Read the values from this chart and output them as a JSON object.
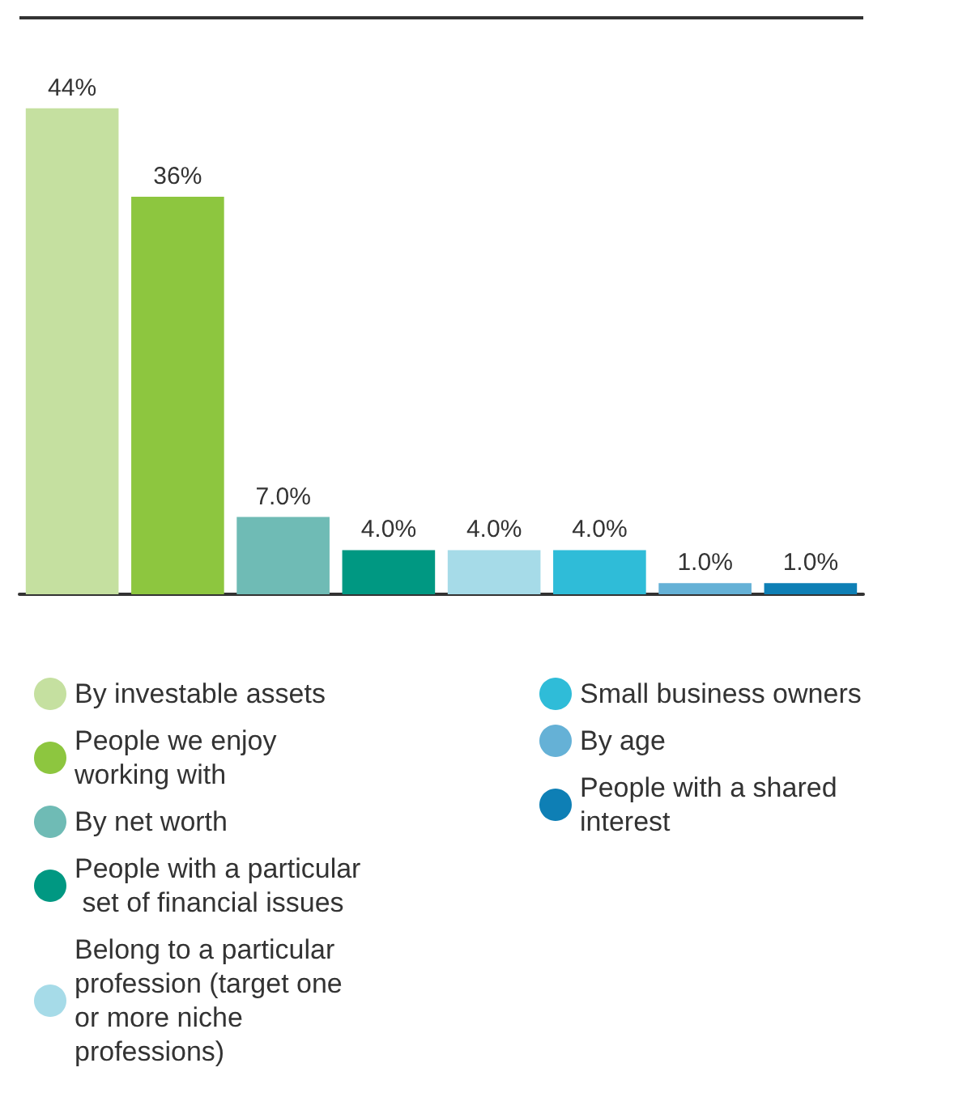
{
  "chart_data": {
    "type": "bar",
    "stacked": true,
    "categories": [
      null,
      null,
      null,
      null,
      null,
      null,
      null,
      null
    ],
    "series": [
      {
        "name": "By investable assets",
        "color": "#c5e0a0",
        "values": [
          44,
          null,
          null,
          null,
          null,
          null,
          null,
          null
        ],
        "value_labels": [
          "44%",
          null,
          null,
          null,
          null,
          null,
          null,
          null
        ]
      },
      {
        "name": "People we enjoy working with",
        "color": "#8dc63f",
        "values": [
          null,
          36,
          null,
          null,
          null,
          null,
          null,
          null
        ],
        "value_labels": [
          null,
          "36%",
          null,
          null,
          null,
          null,
          null,
          null
        ]
      },
      {
        "name": "By net worth",
        "color": "#6fbbb5",
        "values": [
          null,
          null,
          7,
          null,
          null,
          null,
          null,
          null
        ],
        "value_labels": [
          null,
          null,
          "7.0%",
          null,
          null,
          null,
          null,
          null
        ]
      },
      {
        "name": "People with a particular set of financial issues",
        "color": "#009882",
        "values": [
          null,
          null,
          null,
          4,
          null,
          null,
          null,
          null
        ],
        "value_labels": [
          null,
          null,
          null,
          "4.0%",
          null,
          null,
          null,
          null
        ]
      },
      {
        "name": "Belong to a particular profession (target one or more niche professions)",
        "color": "#a6dbe8",
        "values": [
          null,
          null,
          null,
          null,
          4,
          null,
          null,
          null
        ],
        "value_labels": [
          null,
          null,
          null,
          null,
          "4.0%",
          null,
          null,
          null
        ]
      },
      {
        "name": "Small business owners",
        "color": "#2fbcd8",
        "values": [
          null,
          null,
          null,
          null,
          null,
          4,
          null,
          null
        ],
        "value_labels": [
          null,
          null,
          null,
          null,
          null,
          "4.0%",
          null,
          null
        ]
      },
      {
        "name": "By age",
        "color": "#65b1d6",
        "values": [
          null,
          null,
          null,
          null,
          null,
          null,
          1,
          null
        ],
        "value_labels": [
          null,
          null,
          null,
          null,
          null,
          null,
          "1.0%",
          null
        ]
      },
      {
        "name": "People with a shared interest",
        "color": "#0e7fb5",
        "values": [
          null,
          null,
          null,
          null,
          null,
          null,
          null,
          1
        ],
        "value_labels": [
          null,
          null,
          null,
          null,
          null,
          null,
          null,
          "1.0%"
        ]
      }
    ],
    "legend": "bottom"
  }
}
